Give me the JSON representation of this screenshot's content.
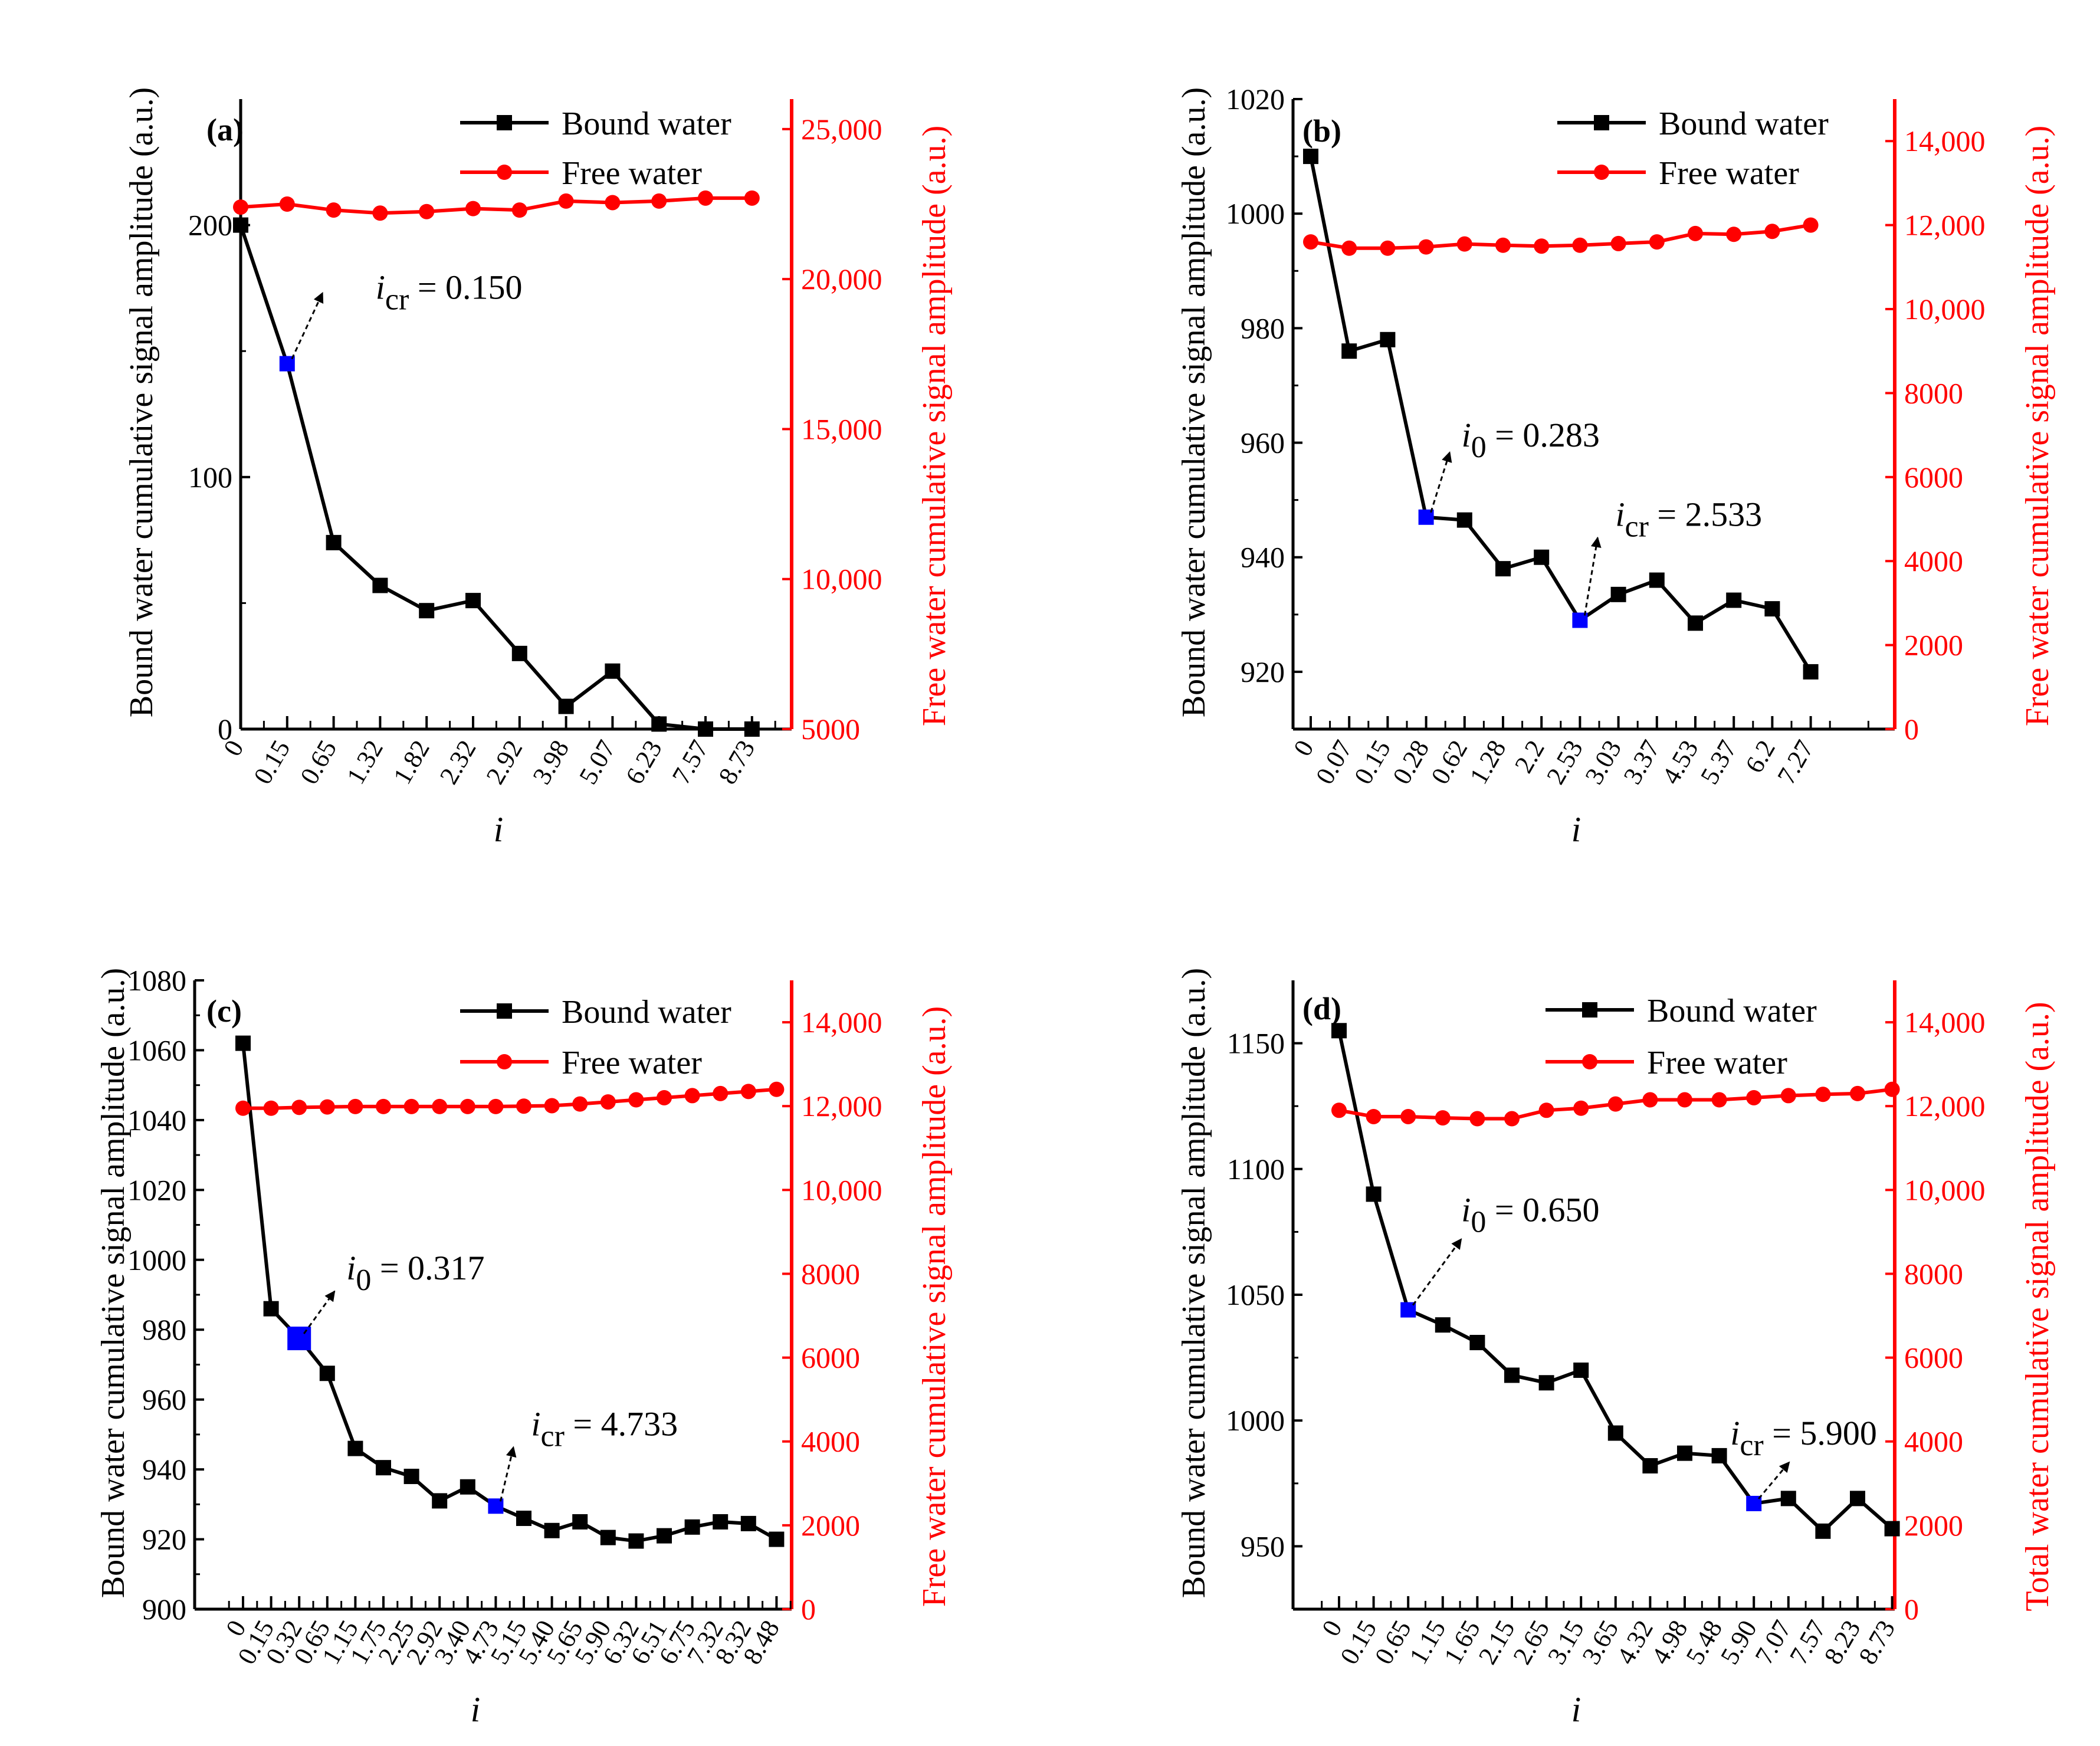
{
  "chart_data": [
    {
      "type": "line",
      "panel_label": "(a)",
      "xlabel": "i",
      "ylabel_left": "Bound water cumulative signal amplitude (a.u.)",
      "ylabel_right": "Free water cumulative signal amplitude (a.u.)",
      "categories": [
        "0",
        "0.15",
        "0.65",
        "1.32",
        "1.82",
        "2.32",
        "2.92",
        "3.98",
        "5.07",
        "6.23",
        "7.57",
        "8.73"
      ],
      "left_axis": {
        "min": 0,
        "max": 250,
        "ticks": [
          0,
          100,
          200
        ],
        "tick_labels": [
          "0",
          "100",
          "200"
        ]
      },
      "right_axis": {
        "min": 5000,
        "max": 26000,
        "ticks": [
          5000,
          10000,
          15000,
          20000,
          25000
        ],
        "tick_labels": [
          "5000",
          "10,000",
          "15,000",
          "20,000",
          "25,000"
        ]
      },
      "series": [
        {
          "name": "Bound water",
          "color": "#000000",
          "marker": "square",
          "axis": "left",
          "values": [
            200,
            145,
            74,
            57,
            47,
            51,
            30,
            9,
            23,
            2,
            0,
            0
          ]
        },
        {
          "name": "Free water",
          "color": "#ff0000",
          "marker": "circle",
          "axis": "right",
          "values": [
            22400,
            22500,
            22300,
            22200,
            22250,
            22350,
            22300,
            22600,
            22550,
            22600,
            22700,
            22700
          ]
        }
      ],
      "highlights": [
        {
          "index": 1,
          "color": "#0000ff"
        }
      ],
      "annotations": [
        {
          "symbol": "i",
          "subscript": "cr",
          "text": " = 0.150",
          "index": 1
        }
      ]
    },
    {
      "type": "line",
      "panel_label": "(b)",
      "xlabel": "i",
      "ylabel_left": "Bound water cumulative signal amplitude (a.u.)",
      "ylabel_right": "Free water cumulative signal amplitude (a.u.)",
      "categories": [
        "0",
        "0.07",
        "0.15",
        "0.28",
        "0.62",
        "1.28",
        "2.2",
        "2.53",
        "3.03",
        "3.37",
        "4.53",
        "5.37",
        "6.2",
        "7.27"
      ],
      "left_axis": {
        "min": 910,
        "max": 1020,
        "ticks": [
          920,
          940,
          960,
          980,
          1000,
          1020
        ],
        "tick_labels": [
          "920",
          "940",
          "960",
          "980",
          "1000",
          "1020"
        ]
      },
      "right_axis": {
        "min": 0,
        "max": 15000,
        "ticks": [
          0,
          2000,
          4000,
          6000,
          8000,
          10000,
          12000,
          14000
        ],
        "tick_labels": [
          "0",
          "2000",
          "4000",
          "6000",
          "8000",
          "10,000",
          "12,000",
          "14,000"
        ]
      },
      "series": [
        {
          "name": "Bound water",
          "color": "#000000",
          "marker": "square",
          "axis": "left",
          "values": [
            1010,
            976,
            978,
            947,
            946.5,
            938,
            940,
            929,
            933.5,
            936,
            928.5,
            932.5,
            931,
            920
          ]
        },
        {
          "name": "Free water",
          "color": "#ff0000",
          "marker": "circle",
          "axis": "right",
          "values": [
            11600,
            11450,
            11450,
            11480,
            11550,
            11520,
            11500,
            11520,
            11560,
            11600,
            11800,
            11780,
            11850,
            12000
          ]
        }
      ],
      "highlights": [
        {
          "index": 3,
          "color": "#0000ff"
        },
        {
          "index": 7,
          "color": "#0000ff"
        }
      ],
      "annotations": [
        {
          "symbol": "i",
          "subscript": "0",
          "text": " = 0.283",
          "index": 3
        },
        {
          "symbol": "i",
          "subscript": "cr",
          "text": " = 2.533",
          "index": 7
        }
      ]
    },
    {
      "type": "line",
      "panel_label": "(c)",
      "xlabel": "i",
      "ylabel_left": "Bound water cumulative signal amplitude (a.u.)",
      "ylabel_right": "Free water cumulative signal amplitude (a.u.)",
      "categories": [
        "0",
        "0.15",
        "0.32",
        "0.65",
        "1.15",
        "1.75",
        "2.25",
        "2.92",
        "3.40",
        "4.73",
        "5.15",
        "5.40",
        "5.65",
        "5.90",
        "6.32",
        "6.51",
        "6.75",
        "7.32",
        "8.32",
        "8.48"
      ],
      "left_axis": {
        "min": 900,
        "max": 1080,
        "ticks": [
          900,
          920,
          940,
          960,
          980,
          1000,
          1020,
          1040,
          1060,
          1080
        ],
        "tick_labels": [
          "900",
          "920",
          "940",
          "960",
          "980",
          "1000",
          "1020",
          "1040",
          "1060",
          "1080"
        ]
      },
      "right_axis": {
        "min": 0,
        "max": 15000,
        "ticks": [
          0,
          2000,
          4000,
          6000,
          8000,
          10000,
          12000,
          14000
        ],
        "tick_labels": [
          "0",
          "2000",
          "4000",
          "6000",
          "8000",
          "10,000",
          "12,000",
          "14,000"
        ]
      },
      "series": [
        {
          "name": "Bound water",
          "color": "#000000",
          "marker": "square",
          "axis": "left",
          "values": [
            1062,
            986,
            977.5,
            967.5,
            946,
            940.5,
            938,
            931,
            935,
            929.5,
            926,
            922.5,
            925,
            920.5,
            919.5,
            921,
            923.5,
            925,
            924.5,
            920
          ]
        },
        {
          "name": "Free water",
          "color": "#ff0000",
          "marker": "circle",
          "axis": "right",
          "values": [
            11950,
            11950,
            11970,
            11980,
            11990,
            11990,
            11990,
            11990,
            11990,
            11990,
            12000,
            12010,
            12050,
            12100,
            12150,
            12200,
            12250,
            12300,
            12350,
            12400
          ]
        }
      ],
      "highlights": [
        {
          "index": 2,
          "color": "#0000ff",
          "large": true
        },
        {
          "index": 9,
          "color": "#0000ff"
        }
      ],
      "annotations": [
        {
          "symbol": "i",
          "subscript": "0",
          "text": " = 0.317",
          "index": 2
        },
        {
          "symbol": "i",
          "subscript": "cr",
          "text": " = 4.733",
          "index": 9
        }
      ]
    },
    {
      "type": "line",
      "panel_label": "(d)",
      "xlabel": "i",
      "ylabel_left": "Bound water cumulative signal amplitude (a.u.)",
      "ylabel_right": "Total water cumulative signal amplitude (a.u.)",
      "categories": [
        "0",
        "0.15",
        "0.65",
        "1.15",
        "1.65",
        "2.15",
        "2.65",
        "3.15",
        "3.65",
        "4.32",
        "4.98",
        "5.48",
        "5.90",
        "7.07",
        "7.57",
        "8.23",
        "8.73"
      ],
      "left_axis": {
        "min": 925,
        "max": 1175,
        "ticks": [
          950,
          1000,
          1050,
          1100,
          1150
        ],
        "tick_labels": [
          "950",
          "1000",
          "1050",
          "1100",
          "1150"
        ]
      },
      "right_axis": {
        "min": 0,
        "max": 15000,
        "ticks": [
          0,
          2000,
          4000,
          6000,
          8000,
          10000,
          12000,
          14000
        ],
        "tick_labels": [
          "0",
          "2000",
          "4000",
          "6000",
          "8000",
          "10,000",
          "12,000",
          "14,000"
        ]
      },
      "series": [
        {
          "name": "Bound water",
          "color": "#000000",
          "marker": "square",
          "axis": "left",
          "values": [
            1155,
            1090,
            1044,
            1038,
            1031,
            1018,
            1015,
            1020,
            995,
            982,
            987,
            986,
            967,
            969,
            956,
            969,
            957
          ]
        },
        {
          "name": "Free water",
          "color": "#ff0000",
          "marker": "circle",
          "axis": "right",
          "values": [
            11900,
            11750,
            11750,
            11720,
            11700,
            11700,
            11900,
            11950,
            12050,
            12150,
            12150,
            12150,
            12200,
            12250,
            12280,
            12300,
            12400
          ]
        }
      ],
      "highlights": [
        {
          "index": 2,
          "color": "#0000ff"
        },
        {
          "index": 12,
          "color": "#0000ff"
        }
      ],
      "annotations": [
        {
          "symbol": "i",
          "subscript": "0",
          "text": " = 0.650",
          "index": 2
        },
        {
          "symbol": "i",
          "subscript": "cr",
          "text": " = 5.900",
          "index": 12
        }
      ]
    }
  ]
}
